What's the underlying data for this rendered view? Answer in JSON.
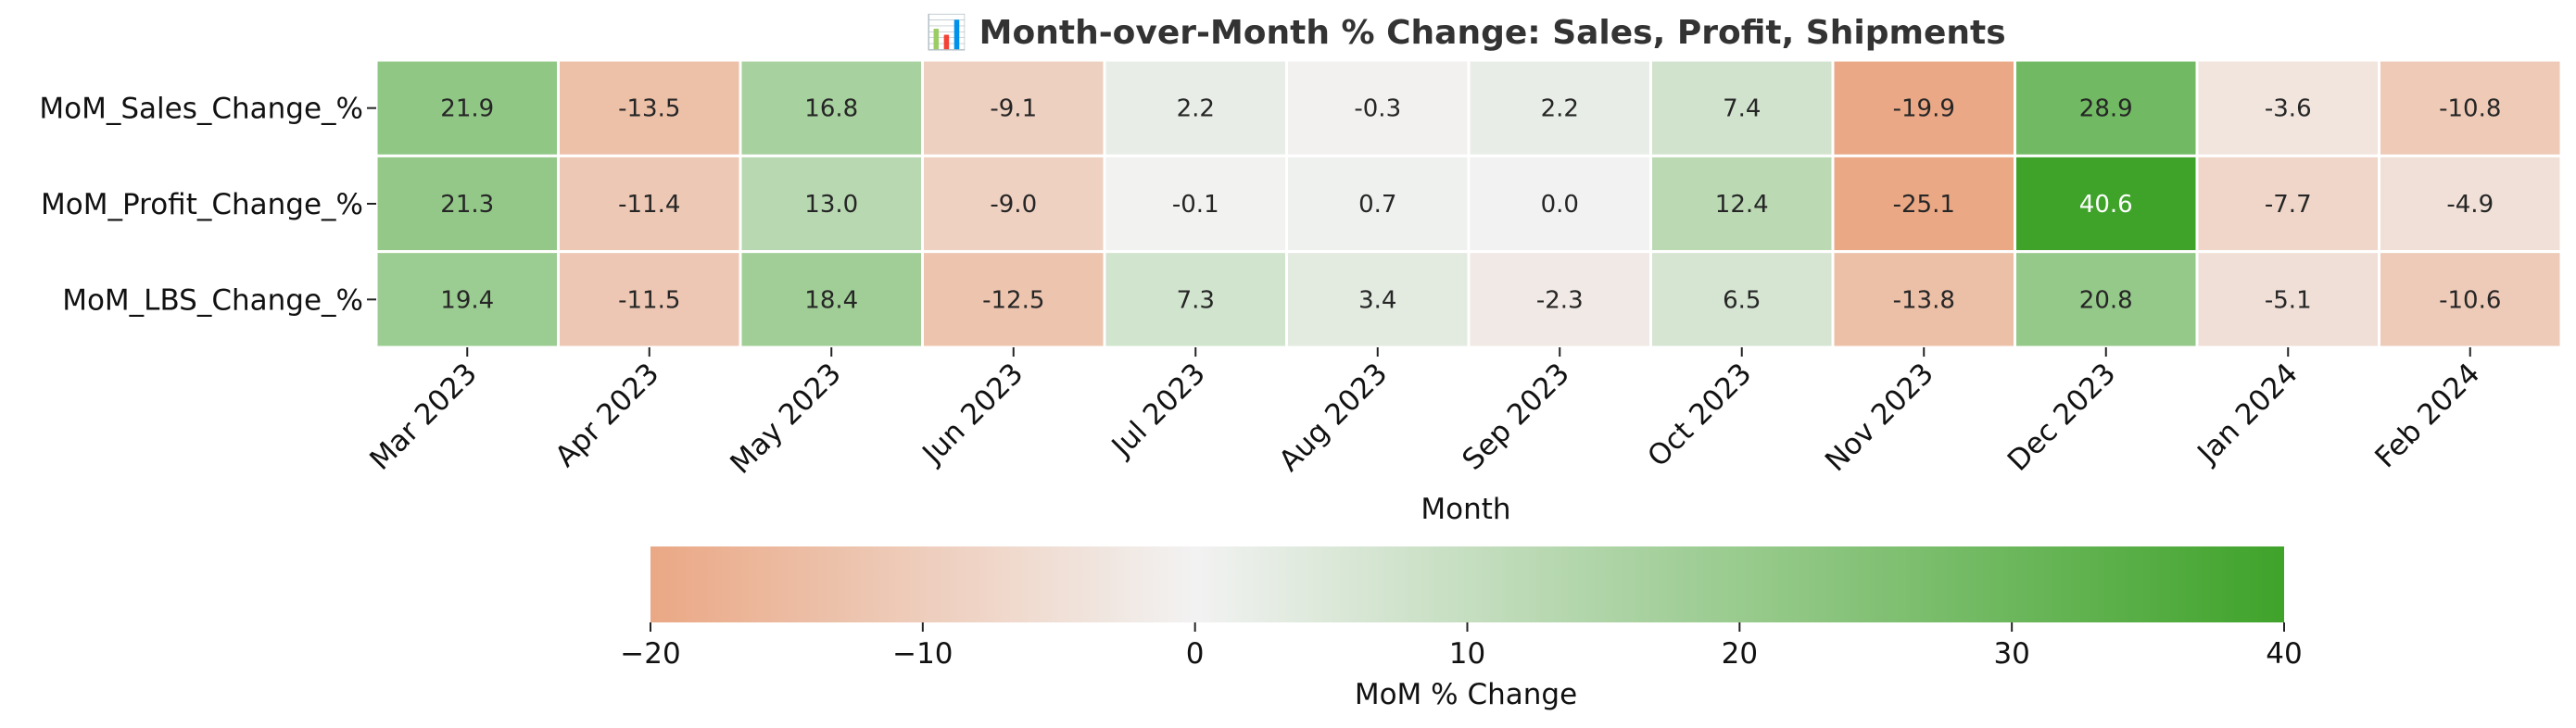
{
  "chart_data": {
    "type": "heatmap",
    "title": "📊 Month-over-Month % Change: Sales, Profit, Shipments",
    "xlabel": "Month",
    "ylabel": "",
    "colorbar_label": "MoM % Change",
    "x": [
      "Mar 2023",
      "Apr 2023",
      "May 2023",
      "Jun 2023",
      "Jul 2023",
      "Aug 2023",
      "Sep 2023",
      "Oct 2023",
      "Nov 2023",
      "Dec 2023",
      "Jan 2024",
      "Feb 2024"
    ],
    "y": [
      "MoM_Sales_Change_%",
      "MoM_Profit_Change_%",
      "MoM_LBS_Change_%"
    ],
    "values": [
      [
        21.9,
        -13.5,
        16.8,
        -9.1,
        2.2,
        -0.3,
        2.2,
        7.4,
        -19.9,
        28.9,
        -3.6,
        -10.8
      ],
      [
        21.3,
        -11.4,
        13.0,
        -9.0,
        -0.1,
        0.7,
        0.0,
        12.4,
        -25.1,
        40.6,
        -7.7,
        -4.9
      ],
      [
        19.4,
        -11.5,
        18.4,
        -12.5,
        7.3,
        3.4,
        -2.3,
        6.5,
        -13.8,
        20.8,
        -5.1,
        -10.6
      ]
    ],
    "value_labels": [
      [
        "21.9",
        "-13.5",
        "16.8",
        "-9.1",
        "2.2",
        "-0.3",
        "2.2",
        "7.4",
        "-19.9",
        "28.9",
        "-3.6",
        "-10.8"
      ],
      [
        "21.3",
        "-11.4",
        "13.0",
        "-9.0",
        "-0.1",
        "0.7",
        "0.0",
        "12.4",
        "-25.1",
        "40.6",
        "-7.7",
        "-4.9"
      ],
      [
        "19.4",
        "-11.5",
        "18.4",
        "-12.5",
        "7.3",
        "3.4",
        "-2.3",
        "6.5",
        "-13.8",
        "20.8",
        "-5.1",
        "-10.6"
      ]
    ],
    "color_range": [
      -20,
      40
    ],
    "colorbar_ticks": [
      -20,
      -10,
      0,
      10,
      20,
      30,
      40
    ],
    "colorbar_tick_labels": [
      "−20",
      "−10",
      "0",
      "10",
      "20",
      "30",
      "40"
    ],
    "colors": {
      "low": "#eaa885",
      "mid": "#f2f2f2",
      "high": "#3fa32a"
    },
    "colorbar_placement": "bottom",
    "grid": false
  }
}
